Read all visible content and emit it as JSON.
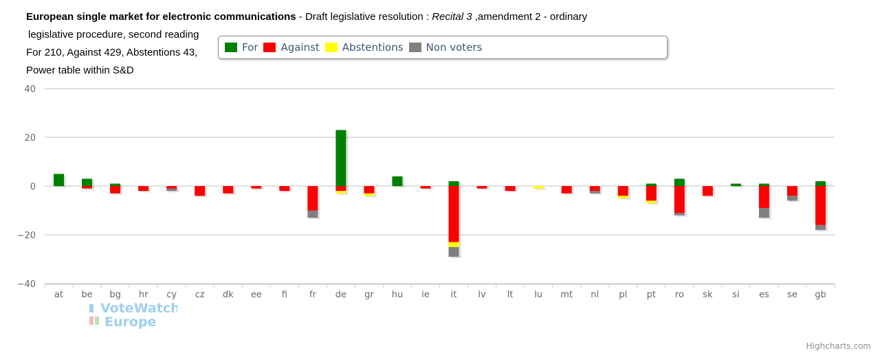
{
  "title": {
    "bold": "European single market for electronic communications",
    "part1": " - Draft legislative resolution : ",
    "italic": "Recital 3",
    "part2": " ,amendment 2 - ordinary",
    "line2": "legislative procedure, second reading",
    "line3": "For 210, Against 429, Abstentions 43,",
    "line4": "Power table within S&D"
  },
  "colors": {
    "For": "#008000",
    "Against": "#ff0000",
    "Abstentions": "#ffff00",
    "Non voters": "#808080"
  },
  "legend_items": [
    {
      "label": "For",
      "color": "#008000"
    },
    {
      "label": "Against",
      "color": "#ff0000"
    },
    {
      "label": "Abstentions",
      "color": "#ffff00"
    },
    {
      "label": "Non voters",
      "color": "#808080"
    }
  ],
  "logo": {
    "line1": "VoteWatch",
    "line2": "Europe"
  },
  "credits": "Highcharts.com",
  "chart_data": {
    "type": "bar",
    "stacked": true,
    "categories": [
      "at",
      "be",
      "bg",
      "hr",
      "cy",
      "cz",
      "dk",
      "ee",
      "fi",
      "fr",
      "de",
      "gr",
      "hu",
      "ie",
      "it",
      "lv",
      "lt",
      "lu",
      "mt",
      "nl",
      "pl",
      "pt",
      "ro",
      "sk",
      "si",
      "es",
      "se",
      "gb"
    ],
    "ylim": [
      -40,
      40
    ],
    "yticks": [
      40,
      20,
      0,
      -20,
      -40
    ],
    "ytick_labels": [
      "40",
      "20",
      "0",
      "−20",
      "−40"
    ],
    "grid": true,
    "legend": "top",
    "series": [
      {
        "name": "For",
        "values": [
          5,
          3,
          1,
          0,
          0,
          0,
          0,
          0,
          0,
          0,
          23,
          0,
          4,
          0,
          2,
          0,
          0,
          0,
          0,
          0,
          0,
          1,
          3,
          0,
          1,
          1,
          0,
          2
        ]
      },
      {
        "name": "Against",
        "values": [
          0,
          -1,
          -3,
          -2,
          -1,
          -4,
          -3,
          -1,
          -2,
          -10,
          -2,
          -3,
          0,
          -1,
          -23,
          -1,
          -2,
          0,
          -3,
          -2,
          -4,
          -6,
          -11,
          -4,
          0,
          -9,
          -4,
          -16
        ]
      },
      {
        "name": "Abstentions",
        "values": [
          0,
          0,
          0,
          0,
          0,
          0,
          0,
          0,
          0,
          0,
          -1,
          -1,
          0,
          0,
          -2,
          0,
          0,
          -1,
          0,
          0,
          -1,
          -1,
          0,
          0,
          0,
          0,
          0,
          0
        ]
      },
      {
        "name": "Non voters",
        "values": [
          0,
          0,
          0,
          0,
          -1,
          0,
          0,
          0,
          0,
          -3,
          0,
          0,
          0,
          0,
          -4,
          0,
          0,
          0,
          0,
          -1,
          0,
          0,
          -1,
          0,
          0,
          -4,
          -2,
          -2
        ]
      }
    ]
  }
}
